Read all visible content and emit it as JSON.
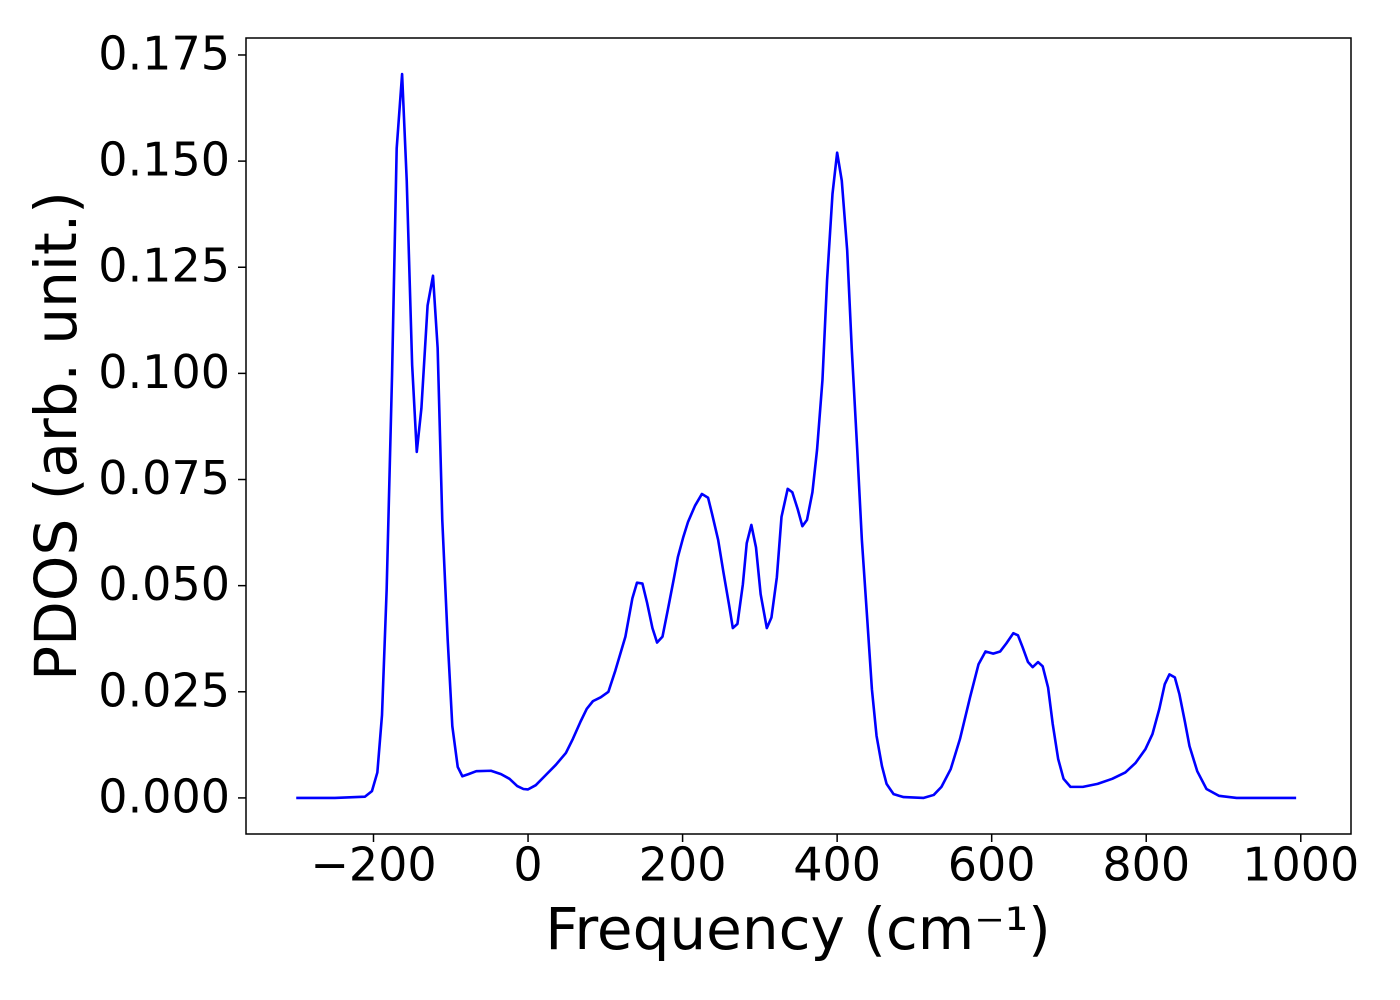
{
  "chart_data": {
    "type": "line",
    "xlabel": "Frequency (cm⁻¹)",
    "ylabel": "PDOS (arb. unit.)",
    "x": [
      -300,
      -250,
      -211,
      -202,
      -195,
      -189,
      -183,
      -176,
      -170,
      -163,
      -157,
      -150,
      -144,
      -138,
      -130,
      -123,
      -117,
      -111,
      -104,
      -98,
      -91,
      -85,
      -77,
      -67,
      -48,
      -35,
      -24,
      -14,
      -6,
      0,
      10,
      23,
      36,
      49,
      58,
      68,
      76,
      84,
      94,
      104,
      113,
      126,
      135,
      141,
      148,
      154,
      161,
      167,
      174,
      181,
      188,
      194,
      201,
      207,
      216,
      225,
      233,
      238,
      246,
      253,
      260,
      265,
      271,
      278,
      283,
      289,
      295,
      301,
      309,
      315,
      322,
      328,
      336,
      342,
      349,
      355,
      361,
      368,
      374,
      381,
      387,
      394,
      400,
      406,
      413,
      419,
      426,
      432,
      439,
      445,
      451,
      458,
      464,
      473,
      486,
      512,
      525,
      535,
      547,
      559,
      572,
      583,
      592,
      602,
      611,
      619,
      628,
      634,
      640,
      647,
      653,
      660,
      666,
      673,
      679,
      686,
      693,
      702,
      718,
      737,
      756,
      773,
      786,
      799,
      808,
      817,
      824,
      830,
      837,
      843,
      850,
      856,
      866,
      878,
      894,
      917,
      950,
      994
    ],
    "values": [
      0,
      0,
      0.0003,
      0.0016,
      0.006,
      0.0195,
      0.049,
      0.0996,
      0.153,
      0.1705,
      0.1454,
      0.102,
      0.0815,
      0.0918,
      0.116,
      0.123,
      0.106,
      0.0655,
      0.0373,
      0.0169,
      0.0073,
      0.0051,
      0.0056,
      0.0063,
      0.0064,
      0.0056,
      0.0045,
      0.0028,
      0.0021,
      0.002,
      0.003,
      0.0054,
      0.0078,
      0.0106,
      0.0139,
      0.018,
      0.021,
      0.0228,
      0.0237,
      0.025,
      0.03,
      0.038,
      0.047,
      0.0507,
      0.0505,
      0.046,
      0.04,
      0.0366,
      0.038,
      0.0444,
      0.051,
      0.0568,
      0.0615,
      0.065,
      0.0688,
      0.0716,
      0.0707,
      0.067,
      0.0608,
      0.053,
      0.0456,
      0.04,
      0.041,
      0.0503,
      0.06,
      0.0643,
      0.059,
      0.048,
      0.04,
      0.0425,
      0.052,
      0.0662,
      0.0728,
      0.072,
      0.068,
      0.064,
      0.0655,
      0.072,
      0.082,
      0.0984,
      0.122,
      0.1423,
      0.152,
      0.1454,
      0.129,
      0.1055,
      0.082,
      0.0608,
      0.042,
      0.0256,
      0.0146,
      0.0075,
      0.0033,
      0.0009,
      0.0002,
      0,
      0.0007,
      0.0026,
      0.0068,
      0.0139,
      0.0237,
      0.0315,
      0.0345,
      0.034,
      0.0345,
      0.0364,
      0.0388,
      0.0383,
      0.0355,
      0.032,
      0.0308,
      0.032,
      0.031,
      0.026,
      0.0174,
      0.0092,
      0.0045,
      0.0026,
      0.0026,
      0.0033,
      0.0045,
      0.006,
      0.0082,
      0.0115,
      0.015,
      0.021,
      0.0268,
      0.0291,
      0.0284,
      0.0244,
      0.018,
      0.0122,
      0.0063,
      0.0021,
      0.0005,
      0,
      0,
      0
    ],
    "color": "#0000ff",
    "xlim": [
      -365,
      1065
    ],
    "ylim": [
      -0.0085,
      0.179
    ],
    "xticks": [
      {
        "value": -200,
        "label": "−200"
      },
      0,
      200,
      400,
      600,
      800,
      1000
    ],
    "yticks": [
      {
        "value": 0,
        "label": "0.000"
      },
      0.025,
      {
        "value": 0.05,
        "label": "0.050"
      },
      0.075,
      {
        "value": 0.1,
        "label": "0.100"
      },
      0.125,
      {
        "value": 0.15,
        "label": "0.150"
      },
      0.175
    ],
    "grid": false
  }
}
